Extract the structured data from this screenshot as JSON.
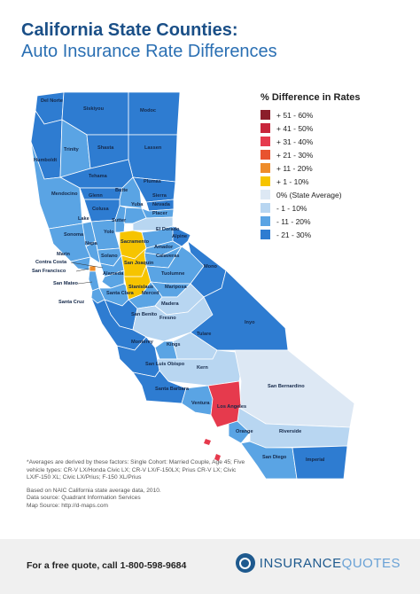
{
  "title": {
    "line1": "California State Counties:",
    "line2": "Auto Insurance Rate Differences"
  },
  "legend": {
    "title": "% Difference in Rates",
    "items": [
      {
        "label": "+ 51 - 60%",
        "color": "#8b1e2a"
      },
      {
        "label": "+ 41 - 50%",
        "color": "#c8263c"
      },
      {
        "label": "+ 31 - 40%",
        "color": "#e63a4d"
      },
      {
        "label": "+ 21 - 30%",
        "color": "#e8532f"
      },
      {
        "label": "+ 11 - 20%",
        "color": "#ee8c2a"
      },
      {
        "label": "+ 1 - 10%",
        "color": "#f6c400"
      },
      {
        "label": "0% (State Average)",
        "color": "#dde8f4"
      },
      {
        "label": "- 1 - 10%",
        "color": "#b8d6f1"
      },
      {
        "label": "- 11 - 20%",
        "color": "#5aa4e4"
      },
      {
        "label": "- 21 - 30%",
        "color": "#2e7cd1"
      }
    ]
  },
  "counties": [
    {
      "name": "Del Norte",
      "fill": "#2e7cd1"
    },
    {
      "name": "Siskiyou",
      "fill": "#2e7cd1"
    },
    {
      "name": "Modoc",
      "fill": "#2e7cd1"
    },
    {
      "name": "Humboldt",
      "fill": "#2e7cd1"
    },
    {
      "name": "Trinity",
      "fill": "#5aa4e4"
    },
    {
      "name": "Shasta",
      "fill": "#2e7cd1"
    },
    {
      "name": "Lassen",
      "fill": "#2e7cd1"
    },
    {
      "name": "Tehama",
      "fill": "#2e7cd1"
    },
    {
      "name": "Plumas",
      "fill": "#2e7cd1"
    },
    {
      "name": "Mendocino",
      "fill": "#5aa4e4"
    },
    {
      "name": "Glenn",
      "fill": "#2e7cd1"
    },
    {
      "name": "Butte",
      "fill": "#5aa4e4"
    },
    {
      "name": "Sierra",
      "fill": "#2e7cd1"
    },
    {
      "name": "Nevada",
      "fill": "#5aa4e4"
    },
    {
      "name": "Colusa",
      "fill": "#2e7cd1"
    },
    {
      "name": "Lake",
      "fill": "#5aa4e4"
    },
    {
      "name": "Sutter",
      "fill": "#5aa4e4"
    },
    {
      "name": "Yuba",
      "fill": "#5aa4e4"
    },
    {
      "name": "Placer",
      "fill": "#b8d6f1"
    },
    {
      "name": "Sonoma",
      "fill": "#5aa4e4"
    },
    {
      "name": "Yolo",
      "fill": "#5aa4e4"
    },
    {
      "name": "Sacramento",
      "fill": "#f6c400"
    },
    {
      "name": "El Dorado",
      "fill": "#5aa4e4"
    },
    {
      "name": "Alpine",
      "fill": "#2e7cd1"
    },
    {
      "name": "Napa",
      "fill": "#5aa4e4"
    },
    {
      "name": "Amador",
      "fill": "#5aa4e4"
    },
    {
      "name": "Marin",
      "fill": "#5aa4e4"
    },
    {
      "name": "Solano",
      "fill": "#5aa4e4"
    },
    {
      "name": "Calaveras",
      "fill": "#5aa4e4"
    },
    {
      "name": "Contra Costa",
      "fill": "#5aa4e4"
    },
    {
      "name": "San Joaquin",
      "fill": "#f6c400"
    },
    {
      "name": "Tuolumne",
      "fill": "#5aa4e4"
    },
    {
      "name": "Mono",
      "fill": "#2e7cd1"
    },
    {
      "name": "San Francisco",
      "fill": "#ee8c2a"
    },
    {
      "name": "Alameda",
      "fill": "#5aa4e4"
    },
    {
      "name": "Stanislaus",
      "fill": "#f6c400"
    },
    {
      "name": "Mariposa",
      "fill": "#5aa4e4"
    },
    {
      "name": "San Mateo",
      "fill": "#5aa4e4"
    },
    {
      "name": "Santa Clara",
      "fill": "#5aa4e4"
    },
    {
      "name": "Merced",
      "fill": "#5aa4e4"
    },
    {
      "name": "Santa Cruz",
      "fill": "#5aa4e4"
    },
    {
      "name": "Madera",
      "fill": "#b8d6f1"
    },
    {
      "name": "San Benito",
      "fill": "#2e7cd1"
    },
    {
      "name": "Fresno",
      "fill": "#b8d6f1"
    },
    {
      "name": "Inyo",
      "fill": "#2e7cd1"
    },
    {
      "name": "Monterey",
      "fill": "#2e7cd1"
    },
    {
      "name": "Tulare",
      "fill": "#b8d6f1"
    },
    {
      "name": "Kings",
      "fill": "#5aa4e4"
    },
    {
      "name": "Kern",
      "fill": "#b8d6f1"
    },
    {
      "name": "San Bernardino",
      "fill": "#dde8f4"
    },
    {
      "name": "San Luis Obispo",
      "fill": "#2e7cd1"
    },
    {
      "name": "Santa Barbara",
      "fill": "#2e7cd1"
    },
    {
      "name": "Ventura",
      "fill": "#5aa4e4"
    },
    {
      "name": "Los Angeles",
      "fill": "#e63a4d"
    },
    {
      "name": "Orange",
      "fill": "#5aa4e4"
    },
    {
      "name": "Riverside",
      "fill": "#b8d6f1"
    },
    {
      "name": "San Diego",
      "fill": "#5aa4e4"
    },
    {
      "name": "Imperial",
      "fill": "#2e7cd1"
    }
  ],
  "notes": {
    "averages": "*Averages are derived by these factors: Single Cohort: Married Couple, Age 45; Five vehicle types: CR-V LX/Honda Civic LX; CR-V LX/F-150LX; Prius CR-V LX; Civic LX/F-150 XL; Civic LX/Prius; F-150 XL/Prius",
    "based": "Based on NAIC California state average data, 2010.",
    "data_source": "Data source: Quadrant Information Services",
    "map_source": "Map Source: http://d-maps.com"
  },
  "footer": {
    "cta": "For a free quote, call 1-800-598-9684",
    "brand_part1": "INSURANCE",
    "brand_part2": "QUOTES"
  }
}
